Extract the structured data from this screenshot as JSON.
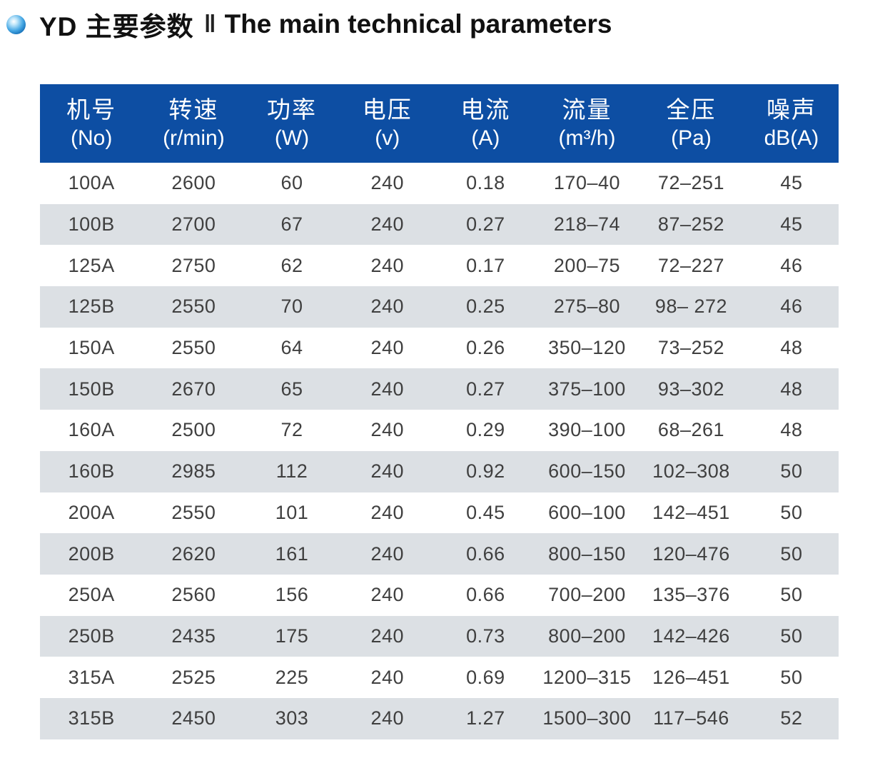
{
  "title": {
    "zh": "YD 主要参数",
    "separator": "‖",
    "en": "The main technical parameters"
  },
  "colors": {
    "header_bg": "#0d4ea3",
    "row_alt": "#dce0e4",
    "body_text": "#3f3f3f",
    "bullet_blue": "#1b7fd0"
  },
  "table": {
    "columns": [
      {
        "zh": "机号",
        "unit": "(No)"
      },
      {
        "zh": "转速",
        "unit": "(r/min)"
      },
      {
        "zh": "功率",
        "unit": "(W)"
      },
      {
        "zh": "电压",
        "unit": "(v)"
      },
      {
        "zh": "电流",
        "unit": "(A)"
      },
      {
        "zh": "流量",
        "unit": "(m³/h)"
      },
      {
        "zh": "全压",
        "unit": "(Pa)"
      },
      {
        "zh": "噪声",
        "unit": "dB(A)"
      }
    ],
    "rows": [
      [
        "100A",
        "2600",
        "60",
        "240",
        "0.18",
        "170–40",
        "72–251",
        "45"
      ],
      [
        "100B",
        "2700",
        "67",
        "240",
        "0.27",
        "218–74",
        "87–252",
        "45"
      ],
      [
        "125A",
        "2750",
        "62",
        "240",
        "0.17",
        "200–75",
        "72–227",
        "46"
      ],
      [
        "125B",
        "2550",
        "70",
        "240",
        "0.25",
        "275–80",
        "98– 272",
        "46"
      ],
      [
        "150A",
        "2550",
        "64",
        "240",
        "0.26",
        "350–120",
        "73–252",
        "48"
      ],
      [
        "150B",
        "2670",
        "65",
        "240",
        "0.27",
        "375–100",
        "93–302",
        "48"
      ],
      [
        "160A",
        "2500",
        "72",
        "240",
        "0.29",
        "390–100",
        "68–261",
        "48"
      ],
      [
        "160B",
        "2985",
        "112",
        "240",
        "0.92",
        "600–150",
        "102–308",
        "50"
      ],
      [
        "200A",
        "2550",
        "101",
        "240",
        "0.45",
        "600–100",
        "142–451",
        "50"
      ],
      [
        "200B",
        "2620",
        "161",
        "240",
        "0.66",
        "800–150",
        "120–476",
        "50"
      ],
      [
        "250A",
        "2560",
        "156",
        "240",
        "0.66",
        "700–200",
        "135–376",
        "50"
      ],
      [
        "250B",
        "2435",
        "175",
        "240",
        "0.73",
        "800–200",
        "142–426",
        "50"
      ],
      [
        "315A",
        "2525",
        "225",
        "240",
        "0.69",
        "1200–315",
        "126–451",
        "50"
      ],
      [
        "315B",
        "2450",
        "303",
        "240",
        "1.27",
        "1500–300",
        "117–546",
        "52"
      ]
    ]
  }
}
